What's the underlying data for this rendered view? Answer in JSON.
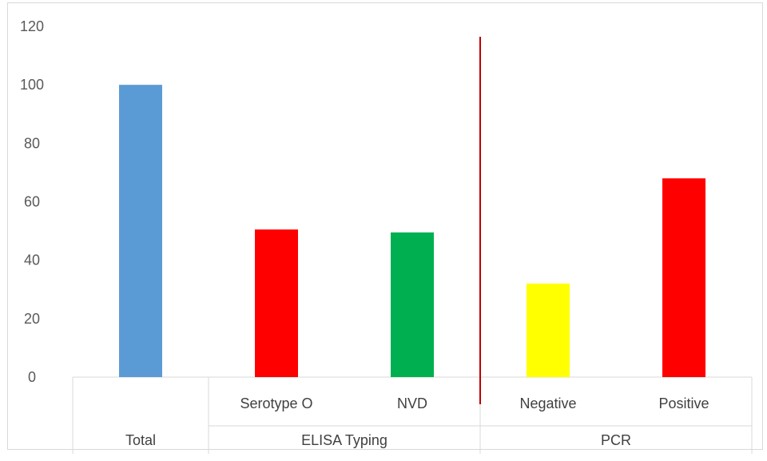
{
  "chart_data": {
    "type": "bar",
    "categories": [
      "Total",
      "Serotype O",
      "NVD",
      "Negative",
      "Positive"
    ],
    "category_labels": [
      "",
      "Serotype O",
      "NVD",
      "Negative",
      "Positive"
    ],
    "groups": [
      {
        "label": "Total",
        "count": 1
      },
      {
        "label": "ELISA Typing",
        "count": 2
      },
      {
        "label": "PCR",
        "count": 2
      }
    ],
    "values": [
      100,
      50.5,
      49.5,
      32,
      68
    ],
    "bar_colors": [
      "#5b9bd5",
      "#ff0000",
      "#00b050",
      "#ffff00",
      "#ff0000"
    ],
    "ylim": [
      0,
      120
    ],
    "yticks": [
      0,
      20,
      40,
      60,
      80,
      100,
      120
    ],
    "title": "",
    "xlabel": "",
    "ylabel": "",
    "grid": false,
    "legend": "none",
    "separator_color": "#c00000"
  }
}
